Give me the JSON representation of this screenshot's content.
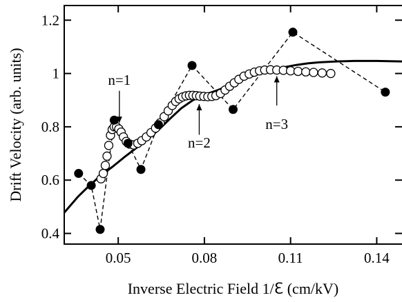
{
  "chart_data": {
    "type": "scatter",
    "xlabel": "Inverse Electric Field  1/ℇ  (cm/kV)",
    "ylabel": "Drift Velocity (arb. units)",
    "xlim": [
      0.0312,
      0.1488
    ],
    "ylim": [
      0.36,
      1.255
    ],
    "x_ticks": [
      {
        "value": 0.05,
        "label": "0.05"
      },
      {
        "value": 0.08,
        "label": "0.08"
      },
      {
        "value": 0.11,
        "label": "0.11"
      },
      {
        "value": 0.14,
        "label": "0.14"
      }
    ],
    "y_ticks": [
      {
        "value": 0.4,
        "label": "0.4"
      },
      {
        "value": 0.6,
        "label": "0.6"
      },
      {
        "value": 0.8,
        "label": "0.8"
      },
      {
        "value": 1.0,
        "label": "1"
      },
      {
        "value": 1.2,
        "label": "1.2"
      }
    ],
    "grid": false,
    "legend": "none",
    "series": [
      {
        "style": "filled-circles-dashed",
        "color": "#000000",
        "points": [
          [
            0.0362,
            0.625
          ],
          [
            0.0406,
            0.58
          ],
          [
            0.0437,
            0.415
          ],
          [
            0.0486,
            0.825
          ],
          [
            0.0534,
            0.738
          ],
          [
            0.0579,
            0.64
          ],
          [
            0.064,
            0.808
          ],
          [
            0.0757,
            1.03
          ],
          [
            0.09,
            0.865
          ],
          [
            0.1108,
            1.155
          ],
          [
            0.143,
            0.93
          ]
        ]
      },
      {
        "style": "open-circles",
        "color": "#000000",
        "points": [
          [
            0.044,
            0.605
          ],
          [
            0.0448,
            0.625
          ],
          [
            0.0455,
            0.655
          ],
          [
            0.0461,
            0.69
          ],
          [
            0.0467,
            0.73
          ],
          [
            0.0473,
            0.768
          ],
          [
            0.0479,
            0.79
          ],
          [
            0.0486,
            0.8
          ],
          [
            0.0494,
            0.8
          ],
          [
            0.0502,
            0.792
          ],
          [
            0.051,
            0.78
          ],
          [
            0.0518,
            0.762
          ],
          [
            0.0528,
            0.745
          ],
          [
            0.054,
            0.735
          ],
          [
            0.0554,
            0.732
          ],
          [
            0.0568,
            0.738
          ],
          [
            0.0582,
            0.748
          ],
          [
            0.0598,
            0.762
          ],
          [
            0.0614,
            0.778
          ],
          [
            0.063,
            0.795
          ],
          [
            0.0646,
            0.815
          ],
          [
            0.066,
            0.838
          ],
          [
            0.0674,
            0.86
          ],
          [
            0.0688,
            0.88
          ],
          [
            0.07,
            0.895
          ],
          [
            0.0712,
            0.905
          ],
          [
            0.0724,
            0.912
          ],
          [
            0.0736,
            0.916
          ],
          [
            0.0748,
            0.918
          ],
          [
            0.076,
            0.918
          ],
          [
            0.0772,
            0.917
          ],
          [
            0.0784,
            0.915
          ],
          [
            0.0798,
            0.914
          ],
          [
            0.0812,
            0.913
          ],
          [
            0.0826,
            0.914
          ],
          [
            0.084,
            0.917
          ],
          [
            0.0856,
            0.925
          ],
          [
            0.0872,
            0.938
          ],
          [
            0.0888,
            0.952
          ],
          [
            0.0904,
            0.965
          ],
          [
            0.092,
            0.978
          ],
          [
            0.0938,
            0.99
          ],
          [
            0.0956,
            0.998
          ],
          [
            0.0974,
            1.005
          ],
          [
            0.0992,
            1.01
          ],
          [
            0.101,
            1.013
          ],
          [
            0.103,
            1.014
          ],
          [
            0.1052,
            1.013
          ],
          [
            0.1075,
            1.012
          ],
          [
            0.11,
            1.01
          ],
          [
            0.1126,
            1.008
          ],
          [
            0.1153,
            1.006
          ],
          [
            0.118,
            1.004
          ],
          [
            0.121,
            1.002
          ],
          [
            0.124,
            1.0
          ]
        ]
      },
      {
        "style": "solid-line",
        "color": "#000000",
        "points": [
          [
            0.0312,
            0.478
          ],
          [
            0.036,
            0.538
          ],
          [
            0.04,
            0.58
          ],
          [
            0.044,
            0.618
          ],
          [
            0.048,
            0.65
          ],
          [
            0.052,
            0.685
          ],
          [
            0.056,
            0.718
          ],
          [
            0.06,
            0.752
          ],
          [
            0.064,
            0.788
          ],
          [
            0.068,
            0.83
          ],
          [
            0.072,
            0.87
          ],
          [
            0.076,
            0.9
          ],
          [
            0.08,
            0.92
          ],
          [
            0.084,
            0.935
          ],
          [
            0.088,
            0.952
          ],
          [
            0.092,
            0.97
          ],
          [
            0.096,
            0.988
          ],
          [
            0.1,
            1.002
          ],
          [
            0.104,
            1.015
          ],
          [
            0.108,
            1.024
          ],
          [
            0.112,
            1.032
          ],
          [
            0.116,
            1.038
          ],
          [
            0.12,
            1.042
          ],
          [
            0.126,
            1.045
          ],
          [
            0.132,
            1.047
          ],
          [
            0.14,
            1.047
          ],
          [
            0.1488,
            1.045
          ]
        ]
      }
    ],
    "annotations": [
      {
        "text": "n=1",
        "text_x": 0.0504,
        "text_y": 0.976,
        "arrow_from": [
          0.0504,
          0.935
        ],
        "arrow_to": [
          0.0504,
          0.815
        ]
      },
      {
        "text": "n=2",
        "text_x": 0.0782,
        "text_y": 0.74,
        "arrow_from": [
          0.0782,
          0.77
        ],
        "arrow_to": [
          0.0782,
          0.885
        ]
      },
      {
        "text": "n=3",
        "text_x": 0.1052,
        "text_y": 0.81,
        "arrow_from": [
          0.1052,
          0.88
        ],
        "arrow_to": [
          0.1052,
          0.99
        ]
      }
    ]
  }
}
